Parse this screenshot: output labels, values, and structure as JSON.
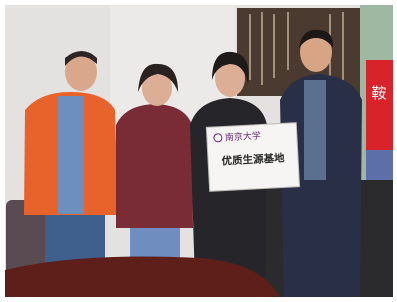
{
  "sign": {
    "logo": "南京大学",
    "title": "优质生源基地"
  },
  "background": {
    "banner_text": "鞍"
  }
}
